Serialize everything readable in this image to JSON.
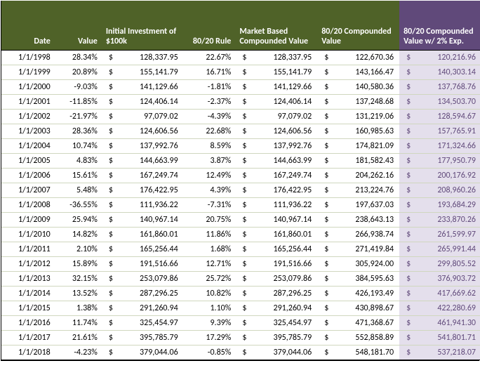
{
  "table": {
    "header_bg_main": "#4f6228",
    "header_bg_highlight": "#60497a",
    "highlight_cell_bg": "#e4dfec",
    "row_border": "#d0d7bf",
    "columns": [
      {
        "key": "date",
        "label": "Date"
      },
      {
        "key": "value",
        "label": "Value"
      },
      {
        "key": "init",
        "label": "Initial Investment of $100k"
      },
      {
        "key": "rule",
        "label": "80/20 Rule"
      },
      {
        "key": "mkt",
        "label": "Market Based Compounded Value"
      },
      {
        "key": "c8020",
        "label": "80/20 Compounded Value"
      },
      {
        "key": "exp",
        "label": "80/20 Compounded Value w/ 2% Exp."
      }
    ],
    "rows": [
      {
        "date": "1/1/1998",
        "value": "28.34%",
        "init": "128,337.95",
        "rule": "22.67%",
        "mkt": "128,337.95",
        "c8020": "122,670.36",
        "exp": "120,216.96"
      },
      {
        "date": "1/1/1999",
        "value": "20.89%",
        "init": "155,141.79",
        "rule": "16.71%",
        "mkt": "155,141.79",
        "c8020": "143,166.47",
        "exp": "140,303.14"
      },
      {
        "date": "1/1/2000",
        "value": "-9.03%",
        "init": "141,129.66",
        "rule": "-1.81%",
        "mkt": "141,129.66",
        "c8020": "140,580.36",
        "exp": "137,768.76"
      },
      {
        "date": "1/1/2001",
        "value": "-11.85%",
        "init": "124,406.14",
        "rule": "-2.37%",
        "mkt": "124,406.14",
        "c8020": "137,248.68",
        "exp": "134,503.70"
      },
      {
        "date": "1/1/2002",
        "value": "-21.97%",
        "init": "97,079.02",
        "rule": "-4.39%",
        "mkt": "97,079.02",
        "c8020": "131,219.06",
        "exp": "128,594.67"
      },
      {
        "date": "1/1/2003",
        "value": "28.36%",
        "init": "124,606.56",
        "rule": "22.68%",
        "mkt": "124,606.56",
        "c8020": "160,985.63",
        "exp": "157,765.91"
      },
      {
        "date": "1/1/2004",
        "value": "10.74%",
        "init": "137,992.76",
        "rule": "8.59%",
        "mkt": "137,992.76",
        "c8020": "174,821.09",
        "exp": "171,324.66"
      },
      {
        "date": "1/1/2005",
        "value": "4.83%",
        "init": "144,663.99",
        "rule": "3.87%",
        "mkt": "144,663.99",
        "c8020": "181,582.43",
        "exp": "177,950.79"
      },
      {
        "date": "1/1/2006",
        "value": "15.61%",
        "init": "167,249.74",
        "rule": "12.49%",
        "mkt": "167,249.74",
        "c8020": "204,262.16",
        "exp": "200,176.92"
      },
      {
        "date": "1/1/2007",
        "value": "5.48%",
        "init": "176,422.95",
        "rule": "4.39%",
        "mkt": "176,422.95",
        "c8020": "213,224.76",
        "exp": "208,960.26"
      },
      {
        "date": "1/1/2008",
        "value": "-36.55%",
        "init": "111,936.22",
        "rule": "-7.31%",
        "mkt": "111,936.22",
        "c8020": "197,637.03",
        "exp": "193,684.29"
      },
      {
        "date": "1/1/2009",
        "value": "25.94%",
        "init": "140,967.14",
        "rule": "20.75%",
        "mkt": "140,967.14",
        "c8020": "238,643.13",
        "exp": "233,870.26"
      },
      {
        "date": "1/1/2010",
        "value": "14.82%",
        "init": "161,860.01",
        "rule": "11.86%",
        "mkt": "161,860.01",
        "c8020": "266,938.74",
        "exp": "261,599.97"
      },
      {
        "date": "1/1/2011",
        "value": "2.10%",
        "init": "165,256.44",
        "rule": "1.68%",
        "mkt": "165,256.44",
        "c8020": "271,419.84",
        "exp": "265,991.44"
      },
      {
        "date": "1/1/2012",
        "value": "15.89%",
        "init": "191,516.66",
        "rule": "12.71%",
        "mkt": "191,516.66",
        "c8020": "305,924.00",
        "exp": "299,805.52"
      },
      {
        "date": "1/1/2013",
        "value": "32.15%",
        "init": "253,079.86",
        "rule": "25.72%",
        "mkt": "253,079.86",
        "c8020": "384,595.63",
        "exp": "376,903.72"
      },
      {
        "date": "1/1/2014",
        "value": "13.52%",
        "init": "287,296.25",
        "rule": "10.82%",
        "mkt": "287,296.25",
        "c8020": "426,193.49",
        "exp": "417,669.62"
      },
      {
        "date": "1/1/2015",
        "value": "1.38%",
        "init": "291,260.94",
        "rule": "1.10%",
        "mkt": "291,260.94",
        "c8020": "430,898.67",
        "exp": "422,280.69"
      },
      {
        "date": "1/1/2016",
        "value": "11.74%",
        "init": "325,454.97",
        "rule": "9.39%",
        "mkt": "325,454.97",
        "c8020": "471,368.67",
        "exp": "461,941.30"
      },
      {
        "date": "1/1/2017",
        "value": "21.61%",
        "init": "395,785.79",
        "rule": "17.29%",
        "mkt": "395,785.79",
        "c8020": "552,858.89",
        "exp": "541,801.71"
      },
      {
        "date": "1/1/2018",
        "value": "-4.23%",
        "init": "379,044.06",
        "rule": "-0.85%",
        "mkt": "379,044.06",
        "c8020": "548,181.70",
        "exp": "537,218.07"
      }
    ]
  }
}
